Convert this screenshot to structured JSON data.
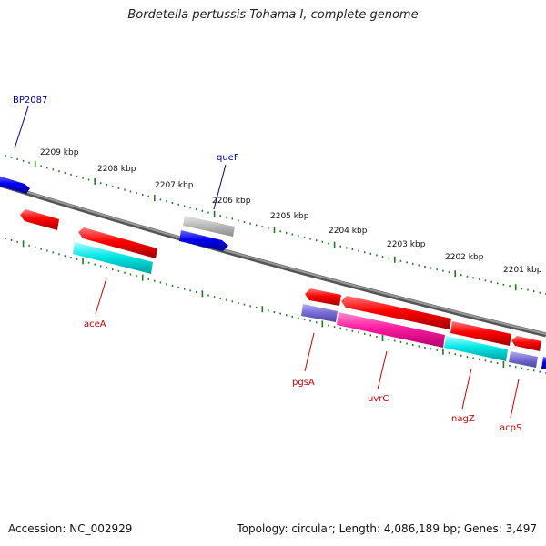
{
  "title": "Bordetella pertussis Tohama I, complete genome",
  "footer": {
    "accession": "Accession: NC_002929",
    "topology": "Topology: circular; Length: 4,086,189 bp; Genes: 3,497"
  },
  "colors": {
    "backbone": "#808080",
    "tick": "#1d7a1d",
    "red": "#ff0000",
    "cyan": "#00e0e0",
    "blue": "#0000ee",
    "gray": "#b0b0b0",
    "purple": "#7a70d0",
    "magenta": "#ff1493",
    "label_blue": "#00008b",
    "label_red": "#cc0000"
  },
  "chart_data": {
    "type": "genome_map",
    "direction": "decreasing left to right",
    "kbp_labels": [
      "2209 kbp",
      "2208 kbp",
      "2207 kbp",
      "2206 kbp",
      "2205 kbp",
      "2204 kbp",
      "2203 kbp",
      "2202 kbp",
      "2201 kbp"
    ],
    "kbp_values": [
      2209,
      2208,
      2207,
      2206,
      2205,
      2204,
      2203,
      2202,
      2201
    ],
    "genes": [
      {
        "name": "BP2087",
        "color": "blue",
        "labeled": true
      },
      {
        "name": "queF",
        "color": "blue",
        "labeled": true
      },
      {
        "name": "aceA",
        "color": "red",
        "labeled": true
      },
      {
        "name": "pgsA",
        "color": "red",
        "labeled": true
      },
      {
        "name": "uvrC",
        "color": "red",
        "labeled": true
      },
      {
        "name": "nagZ",
        "color": "red",
        "labeled": true
      },
      {
        "name": "acpS",
        "color": "red",
        "labeled": true
      }
    ]
  }
}
